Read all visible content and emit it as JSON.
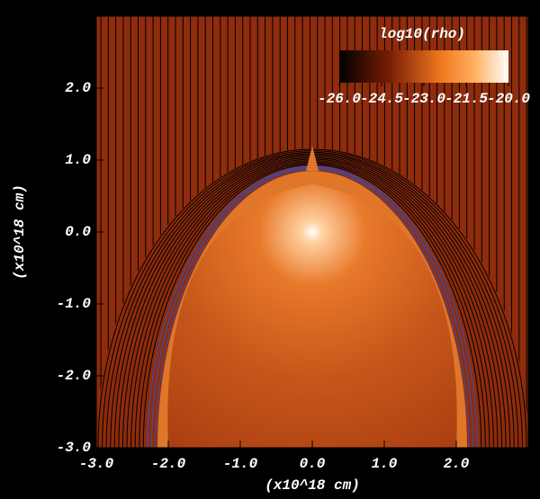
{
  "chart_data": {
    "type": "image",
    "xlabel": "(x10^18 cm)",
    "ylabel": "(x10^18 cm)",
    "xlim": [
      -3,
      3
    ],
    "ylim": [
      -3,
      3
    ],
    "xticks": [
      {
        "value": -3,
        "label": "-3.0"
      },
      {
        "value": -2,
        "label": "-2.0"
      },
      {
        "value": -1,
        "label": "-1.0"
      },
      {
        "value": 0,
        "label": "0.0"
      },
      {
        "value": 1,
        "label": "1.0"
      },
      {
        "value": 2,
        "label": "2.0"
      }
    ],
    "yticks": [
      {
        "value": -3,
        "label": "-3.0"
      },
      {
        "value": -2,
        "label": "-2.0"
      },
      {
        "value": -1,
        "label": "-1.0"
      },
      {
        "value": 0,
        "label": "0.0"
      },
      {
        "value": 1,
        "label": "1.0"
      },
      {
        "value": 2,
        "label": "2.0"
      }
    ],
    "colorbar": {
      "title": "log10(rho)",
      "lim": [
        -26,
        -20
      ],
      "ticks": [
        {
          "value": -26,
          "label": "-26.0"
        },
        {
          "value": -24.5,
          "label": "-24.5"
        },
        {
          "value": -23,
          "label": "-23.0"
        },
        {
          "value": -21.5,
          "label": "-21.5"
        },
        {
          "value": -20,
          "label": "-20.0"
        }
      ]
    }
  }
}
